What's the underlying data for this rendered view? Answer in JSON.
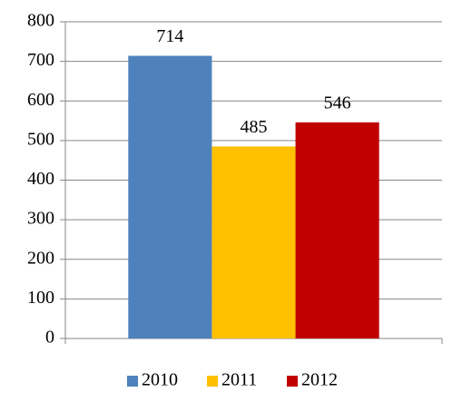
{
  "chart_data": {
    "type": "bar",
    "categories": [
      null
    ],
    "series": [
      {
        "name": "2010",
        "color": "#4f81bd",
        "values": [
          714
        ]
      },
      {
        "name": "2011",
        "color": "#ffc000",
        "values": [
          485
        ]
      },
      {
        "name": "2012",
        "color": "#c00000",
        "values": [
          546
        ]
      }
    ],
    "ylim": [
      0,
      800
    ],
    "yticks": [
      0,
      100,
      200,
      300,
      400,
      500,
      600,
      700,
      800
    ],
    "grid": true,
    "data_labels": true,
    "legend": "bottom"
  }
}
